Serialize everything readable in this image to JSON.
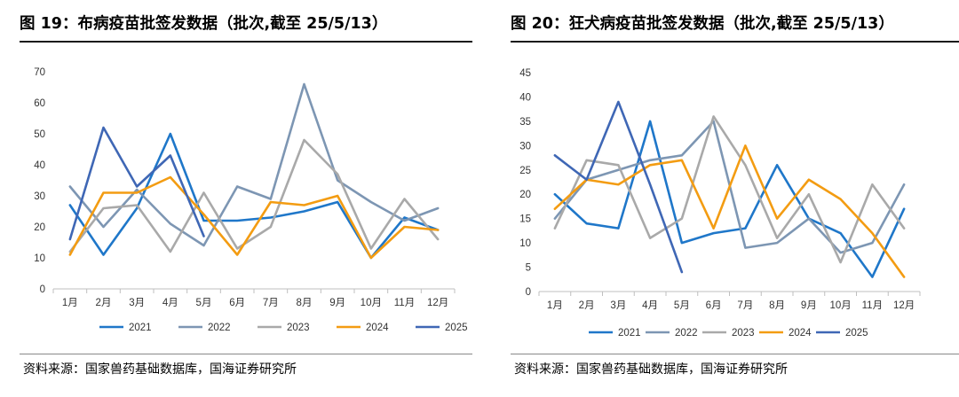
{
  "charts": [
    {
      "title": "图 19：布病疫苗批签发数据（批次,截至 25/5/13）",
      "source": "资料来源：国家兽药基础数据库，国海证券研究所"
    },
    {
      "title": "图 20：狂犬病疫苗批签发数据（批次,截至 25/5/13）",
      "source": "资料来源：国家兽药基础数据库，国海证券研究所"
    }
  ],
  "chart_data": [
    {
      "type": "line",
      "title": "图 19：布病疫苗批签发数据（批次,截至 25/5/13）",
      "categories": [
        "1月",
        "2月",
        "3月",
        "4月",
        "5月",
        "6月",
        "7月",
        "8月",
        "9月",
        "10月",
        "11月",
        "12月"
      ],
      "ylim": [
        0,
        70
      ],
      "yticks": [
        0,
        10,
        20,
        30,
        40,
        50,
        60,
        70
      ],
      "grid": false,
      "legend": "bottom",
      "series": [
        {
          "name": "2021",
          "color": "#1f77c9",
          "values": [
            27,
            11,
            26,
            50,
            22,
            22,
            23,
            25,
            28,
            10,
            23,
            19
          ]
        },
        {
          "name": "2022",
          "color": "#7d96b3",
          "values": [
            33,
            20,
            32,
            21,
            14,
            33,
            29,
            66,
            35,
            28,
            22,
            26
          ]
        },
        {
          "name": "2023",
          "color": "#a9a9a9",
          "values": [
            12,
            26,
            27,
            12,
            31,
            13,
            20,
            48,
            37,
            13,
            29,
            16
          ]
        },
        {
          "name": "2024",
          "color": "#f39c12",
          "values": [
            11,
            31,
            31,
            36,
            24,
            11,
            28,
            27,
            30,
            10,
            20,
            19
          ]
        },
        {
          "name": "2025",
          "color": "#3f67b5",
          "values": [
            16,
            52,
            33,
            43,
            17,
            null,
            null,
            null,
            null,
            null,
            null,
            null
          ]
        }
      ]
    },
    {
      "type": "line",
      "title": "图 20：狂犬病疫苗批签发数据（批次,截至 25/5/13）",
      "categories": [
        "1月",
        "2月",
        "3月",
        "4月",
        "5月",
        "6月",
        "7月",
        "8月",
        "9月",
        "10月",
        "11月",
        "12月"
      ],
      "ylim": [
        0,
        45
      ],
      "yticks": [
        0,
        5,
        10,
        15,
        20,
        25,
        30,
        35,
        40,
        45
      ],
      "grid": false,
      "legend": "bottom",
      "series": [
        {
          "name": "2021",
          "color": "#1f77c9",
          "values": [
            20,
            14,
            13,
            35,
            10,
            12,
            13,
            26,
            15,
            12,
            3,
            17
          ]
        },
        {
          "name": "2022",
          "color": "#7d96b3",
          "values": [
            15,
            23,
            25,
            27,
            28,
            35,
            9,
            10,
            15,
            8,
            10,
            22
          ]
        },
        {
          "name": "2023",
          "color": "#a9a9a9",
          "values": [
            13,
            27,
            26,
            11,
            15,
            36,
            26,
            11,
            20,
            6,
            22,
            13
          ]
        },
        {
          "name": "2024",
          "color": "#f39c12",
          "values": [
            17,
            23,
            22,
            26,
            27,
            13,
            30,
            15,
            23,
            19,
            12,
            3
          ]
        },
        {
          "name": "2025",
          "color": "#3f67b5",
          "values": [
            28,
            23,
            39,
            22,
            4,
            null,
            null,
            null,
            null,
            null,
            null,
            null
          ]
        }
      ]
    }
  ]
}
